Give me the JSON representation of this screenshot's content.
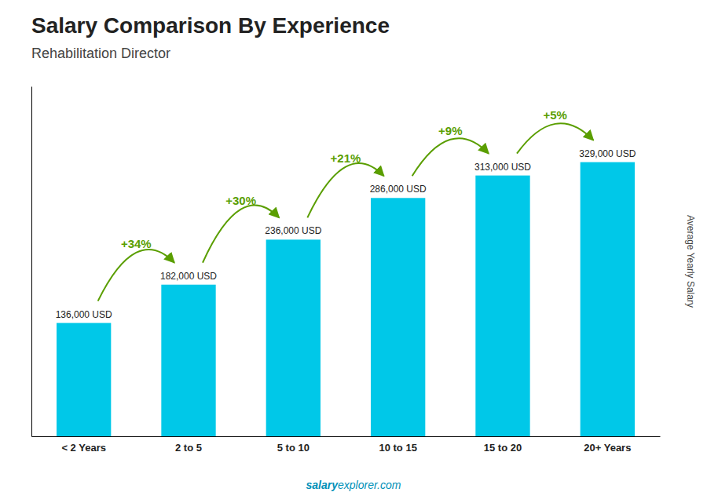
{
  "chart_data": {
    "type": "bar",
    "title": "Salary Comparison By Experience",
    "subtitle": "Rehabilitation Director",
    "categories": [
      "< 2 Years",
      "2 to 5",
      "5 to 10",
      "10 to 15",
      "15 to 20",
      "20+ Years"
    ],
    "values": [
      136000,
      182000,
      236000,
      286000,
      313000,
      329000
    ],
    "value_labels": [
      "136,000 USD",
      "182,000 USD",
      "236,000 USD",
      "286,000 USD",
      "313,000 USD",
      "329,000 USD"
    ],
    "data_labels": true,
    "color": "#00c8e8",
    "annotations": [
      "+34%",
      "+30%",
      "+21%",
      "+9%",
      "+5%"
    ],
    "y_label": "Average Yearly Salary",
    "footer": [
      "salary",
      "explorer.com"
    ],
    "ylim": [
      0,
      420000
    ],
    "yticks": [],
    "tick_labels": "x",
    "grid": false
  }
}
